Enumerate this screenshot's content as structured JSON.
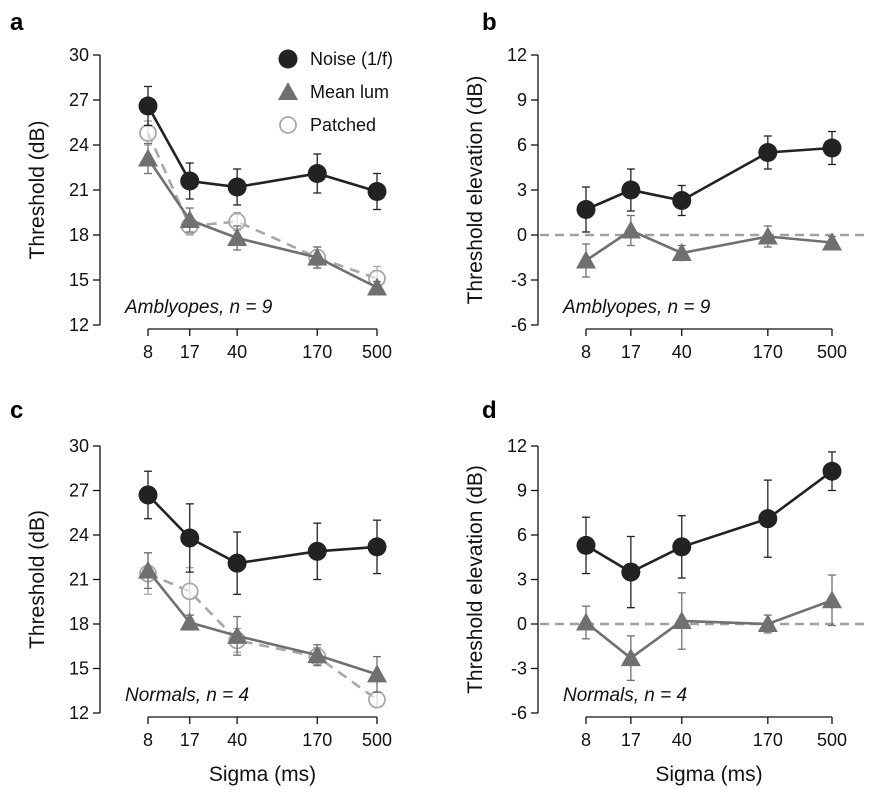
{
  "colors": {
    "noise": "#222222",
    "mean_lum": "#707070",
    "patched": "#a8a8a8",
    "reference": "#a0a0a0",
    "axis": "#111111"
  },
  "legend": {
    "noise": "Noise (1/f)",
    "mean_lum": "Mean lum",
    "patched": "Patched"
  },
  "chart_data": [
    {
      "id": "a",
      "type": "line",
      "panel_label": "a",
      "annotation": "Amblyopes, n = 9",
      "xlabel": "",
      "ylabel": "Threshold (dB)",
      "x_ticks": [
        "8",
        "17",
        "40",
        "170",
        "500"
      ],
      "y_ticks": [
        "12",
        "15",
        "18",
        "21",
        "24",
        "27",
        "30"
      ],
      "ylim": [
        12,
        30
      ],
      "x_scale": "log",
      "show_legend": true,
      "reference_line": null,
      "series": [
        {
          "key": "noise",
          "name": "Noise (1/f)",
          "marker": "circle",
          "x": [
            8,
            17,
            40,
            170,
            500
          ],
          "y": [
            26.6,
            21.6,
            21.2,
            22.1,
            20.9
          ],
          "err": [
            1.3,
            1.2,
            1.2,
            1.3,
            1.2
          ]
        },
        {
          "key": "mean_lum",
          "name": "Mean lum",
          "marker": "triangle",
          "x": [
            8,
            17,
            40,
            170,
            500
          ],
          "y": [
            23.1,
            19.0,
            17.8,
            16.5,
            14.5
          ],
          "err": [
            1.0,
            0.8,
            0.8,
            0.7,
            0.4
          ]
        },
        {
          "key": "patched",
          "name": "Patched",
          "marker": "open-circle",
          "dashed": true,
          "x": [
            8,
            17,
            40,
            170,
            500
          ],
          "y": [
            24.8,
            18.6,
            18.9,
            16.5,
            15.1
          ],
          "err": [
            0.8,
            0.6,
            0.6,
            0.7,
            0.8
          ]
        }
      ]
    },
    {
      "id": "b",
      "type": "line",
      "panel_label": "b",
      "annotation": "Amblyopes, n = 9",
      "xlabel": "",
      "ylabel": "Threshold elevation (dB)",
      "x_ticks": [
        "8",
        "17",
        "40",
        "170",
        "500"
      ],
      "y_ticks": [
        "-6",
        "-3",
        "0",
        "3",
        "6",
        "9",
        "12"
      ],
      "ylim": [
        -6,
        12
      ],
      "x_scale": "log",
      "show_legend": false,
      "reference_line": 0,
      "series": [
        {
          "key": "noise",
          "marker": "circle",
          "x": [
            8,
            17,
            40,
            170,
            500
          ],
          "y": [
            1.7,
            3.0,
            2.3,
            5.5,
            5.8
          ],
          "err": [
            1.5,
            1.4,
            1.0,
            1.1,
            1.1
          ]
        },
        {
          "key": "mean_lum",
          "marker": "triangle",
          "x": [
            8,
            17,
            40,
            170,
            500
          ],
          "y": [
            -1.7,
            0.3,
            -1.2,
            -0.1,
            -0.5
          ],
          "err": [
            1.1,
            1.0,
            0.5,
            0.7,
            0.4
          ]
        }
      ]
    },
    {
      "id": "c",
      "type": "line",
      "panel_label": "c",
      "annotation": "Normals, n = 4",
      "xlabel": "Sigma (ms)",
      "ylabel": "Threshold (dB)",
      "x_ticks": [
        "8",
        "17",
        "40",
        "170",
        "500"
      ],
      "y_ticks": [
        "12",
        "15",
        "18",
        "21",
        "24",
        "27",
        "30"
      ],
      "ylim": [
        12,
        30
      ],
      "x_scale": "log",
      "show_legend": false,
      "reference_line": null,
      "series": [
        {
          "key": "noise",
          "marker": "circle",
          "x": [
            8,
            17,
            40,
            170,
            500
          ],
          "y": [
            26.7,
            23.8,
            22.1,
            22.9,
            23.2
          ],
          "err": [
            1.6,
            2.3,
            2.1,
            1.9,
            1.8
          ]
        },
        {
          "key": "mean_lum",
          "marker": "triangle",
          "x": [
            8,
            17,
            40,
            170,
            500
          ],
          "y": [
            21.6,
            18.1,
            17.2,
            15.9,
            14.6
          ],
          "err": [
            1.2,
            0.5,
            1.3,
            0.7,
            1.2
          ]
        },
        {
          "key": "patched",
          "marker": "open-circle",
          "dashed": true,
          "x": [
            8,
            17,
            40,
            170,
            500
          ],
          "y": [
            21.4,
            20.2,
            16.9,
            15.8,
            12.9
          ],
          "err": [
            1.4,
            1.6,
            0.8,
            0.6,
            0.5
          ]
        }
      ]
    },
    {
      "id": "d",
      "type": "line",
      "panel_label": "d",
      "annotation": "Normals, n = 4",
      "xlabel": "Sigma (ms)",
      "ylabel": "Threshold elevation (dB)",
      "x_ticks": [
        "8",
        "17",
        "40",
        "170",
        "500"
      ],
      "y_ticks": [
        "-6",
        "-3",
        "0",
        "3",
        "6",
        "9",
        "12"
      ],
      "ylim": [
        -6,
        12
      ],
      "x_scale": "log",
      "show_legend": false,
      "reference_line": 0,
      "series": [
        {
          "key": "noise",
          "marker": "circle",
          "x": [
            8,
            17,
            40,
            170,
            500
          ],
          "y": [
            5.3,
            3.5,
            5.2,
            7.1,
            10.3
          ],
          "err": [
            1.9,
            2.4,
            2.1,
            2.6,
            1.3
          ]
        },
        {
          "key": "mean_lum",
          "marker": "triangle",
          "x": [
            8,
            17,
            40,
            170,
            500
          ],
          "y": [
            0.1,
            -2.3,
            0.2,
            0.0,
            1.6
          ],
          "err": [
            1.1,
            1.5,
            1.9,
            0.6,
            1.7
          ]
        }
      ]
    }
  ]
}
